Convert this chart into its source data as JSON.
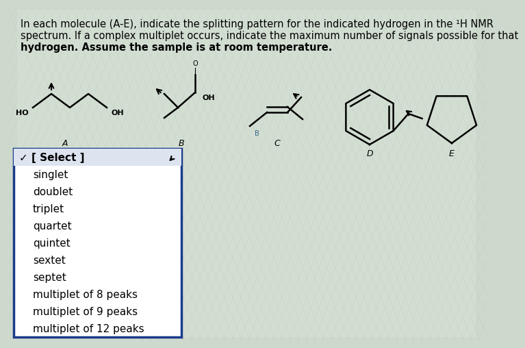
{
  "bg_color": "#cdd9cd",
  "white_area_color": "#e8ece8",
  "header_text_line1": "In each molecule (A-E), indicate the splitting pattern for the indicated hydrogen in the ¹H NMR",
  "header_text_line2": "spectrum. If a complex multiplet occurs, indicate the maximum number of signals possible for that",
  "header_text_line3": "hydrogen. Assume the sample is at room temperature.",
  "header_fontsize": 10.5,
  "dropdown_items": [
    "✓ [ Select ]",
    "singlet",
    "doublet",
    "triplet",
    "quartet",
    "quintet",
    "sextet",
    "septet",
    "multiplet of 8 peaks",
    "multiplet of 9 peaks",
    "multiplet of 12 peaks"
  ],
  "dropdown_fontsize": 11,
  "molecule_labels": [
    "A",
    "B",
    "C",
    "D",
    "E"
  ],
  "mol_label_fontsize": 9
}
